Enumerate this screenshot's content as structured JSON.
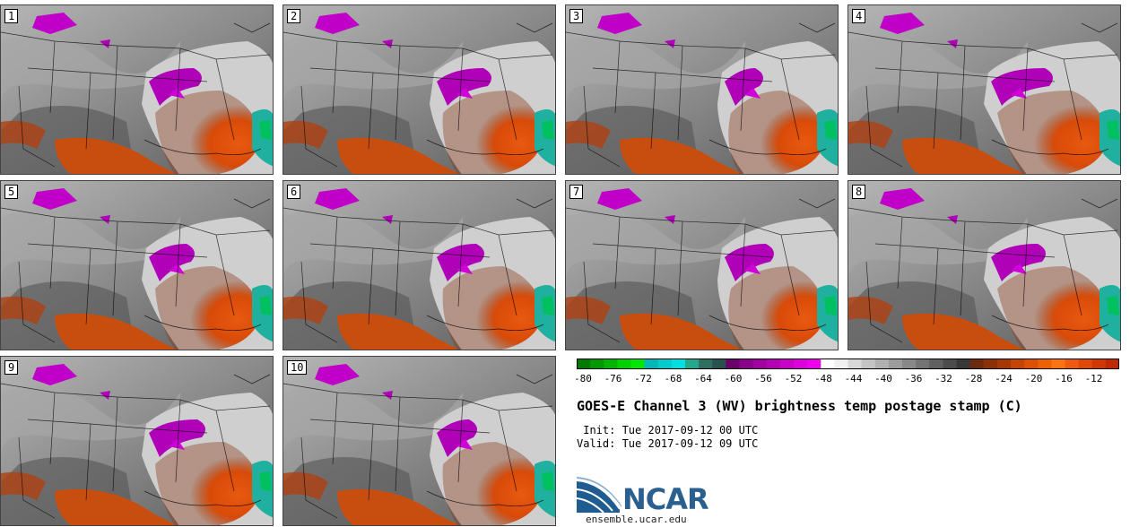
{
  "panels": [
    {
      "label": "1"
    },
    {
      "label": "2"
    },
    {
      "label": "3"
    },
    {
      "label": "4"
    },
    {
      "label": "5"
    },
    {
      "label": "6"
    },
    {
      "label": "7"
    },
    {
      "label": "8"
    },
    {
      "label": "9"
    },
    {
      "label": "10"
    }
  ],
  "colorbar": {
    "tick_labels": [
      "-80",
      "-76",
      "-72",
      "-68",
      "-64",
      "-60",
      "-56",
      "-52",
      "-48",
      "-44",
      "-40",
      "-36",
      "-32",
      "-28",
      "-24",
      "-20",
      "-16",
      "-12"
    ],
    "colors": [
      "#007a00",
      "#009a00",
      "#00b400",
      "#00d200",
      "#00e800",
      "#00b8b8",
      "#00cccc",
      "#00e0e0",
      "#23a88c",
      "#2f6f5f",
      "#2a5050",
      "#6a006a",
      "#8a008a",
      "#a000a0",
      "#b400b4",
      "#c800c8",
      "#dc00dc",
      "#ee00ee",
      "#ffffff",
      "#f0f0f0",
      "#d8d8d8",
      "#c4c4c4",
      "#b0b0b0",
      "#9c9c9c",
      "#888888",
      "#747474",
      "#606060",
      "#4c4c4c",
      "#383838",
      "#6e2a10",
      "#8c3008",
      "#a83800",
      "#c44400",
      "#dc5000",
      "#ee6000",
      "#ff7410",
      "#f05a10",
      "#e04808",
      "#d03800",
      "#c02800"
    ]
  },
  "title": "GOES-E Channel 3 (WV) brightness temp postage stamp (C)",
  "init": " Init: Tue 2017-09-12 00 UTC",
  "valid": "Valid: Tue 2017-09-12 09 UTC",
  "logo_text": "NCAR",
  "site": "ensemble.ucar.edu"
}
